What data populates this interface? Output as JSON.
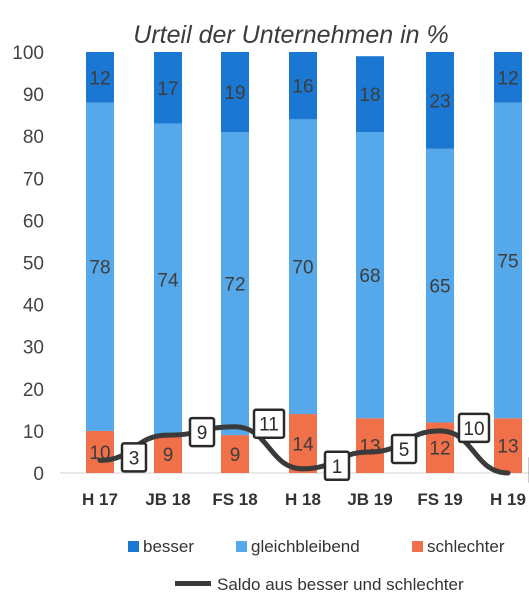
{
  "chart_data": {
    "type": "bar",
    "stacked": true,
    "title": "Urteil der Unternehmen in %",
    "categories": [
      "H 17",
      "JB 18",
      "FS 18",
      "H 18",
      "JB 19",
      "FS 19",
      "H 19"
    ],
    "series": [
      {
        "name": "schlechter",
        "color": "#f0704a",
        "values": [
          10,
          9,
          9,
          14,
          13,
          12,
          13
        ]
      },
      {
        "name": "gleichbleibend",
        "color": "#55a8ea",
        "values": [
          78,
          74,
          72,
          70,
          68,
          65,
          75
        ]
      },
      {
        "name": "besser",
        "color": "#1a78d2",
        "values": [
          12,
          17,
          19,
          16,
          18,
          23,
          12
        ]
      }
    ],
    "line": {
      "name": "Saldo aus besser und schlechter",
      "color": "#3a3a3a",
      "values": [
        3,
        9,
        11,
        1,
        5,
        10,
        0
      ]
    },
    "yticks": [
      0,
      10,
      20,
      30,
      40,
      50,
      60,
      70,
      80,
      90,
      100
    ],
    "ylim": [
      0,
      100
    ],
    "legend_position": "bottom"
  }
}
